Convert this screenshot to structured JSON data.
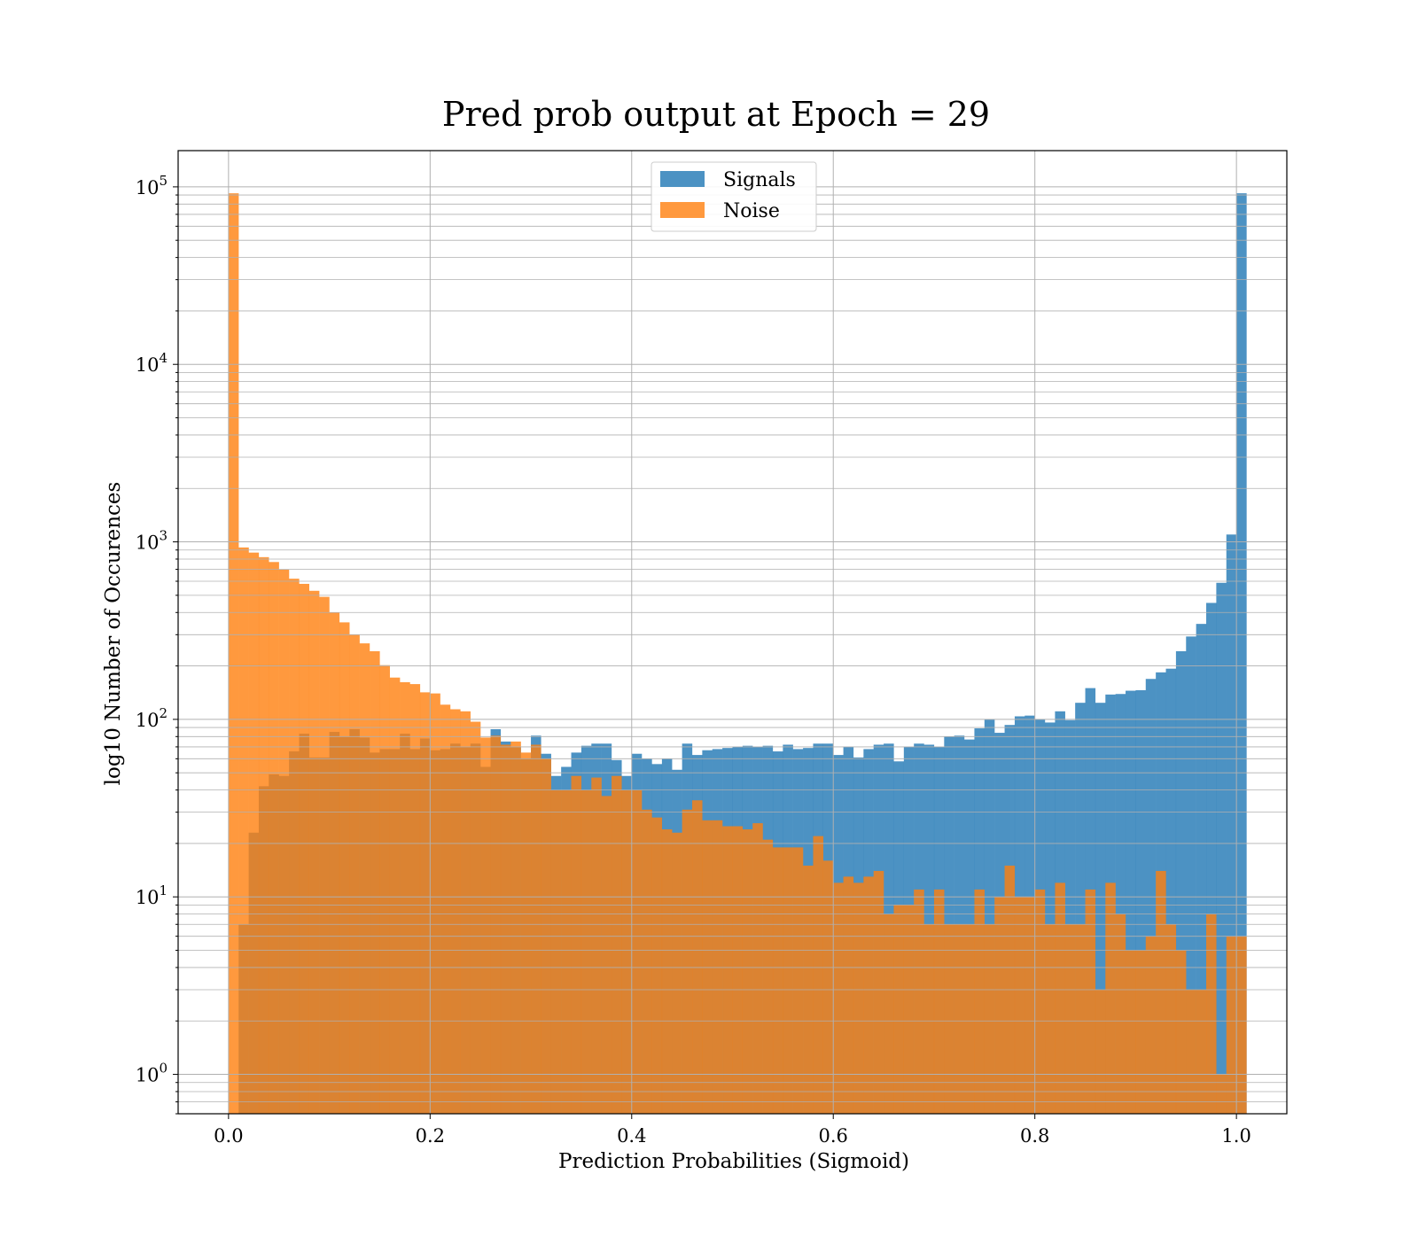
{
  "chart_data": {
    "type": "bar",
    "title": "Pred prob output at Epoch = 29",
    "xlabel": "Prediction Probabilities (Sigmoid)",
    "ylabel": "log10 Number of Occurences",
    "xlim": [
      -0.05,
      1.05
    ],
    "ylim": [
      0.6,
      160000
    ],
    "yscale": "log",
    "grid": true,
    "legend_position": "top-center",
    "bin_start": 0.0,
    "bin_width": 0.01,
    "xticks": [
      "0.0",
      "0.2",
      "0.4",
      "0.6",
      "0.8",
      "1.0"
    ],
    "yticks": [
      {
        "base": "10",
        "exp": "0"
      },
      {
        "base": "10",
        "exp": "1"
      },
      {
        "base": "10",
        "exp": "2"
      },
      {
        "base": "10",
        "exp": "3"
      },
      {
        "base": "10",
        "exp": "4"
      },
      {
        "base": "10",
        "exp": "5"
      }
    ],
    "series": [
      {
        "name": "Signals",
        "color": "#1f77b4",
        "opacity": 0.8,
        "values": [
          0,
          7,
          23,
          42,
          49,
          48,
          66,
          83,
          61,
          61,
          85,
          80,
          88,
          79,
          65,
          68,
          68,
          83,
          68,
          78,
          67,
          68,
          73,
          70,
          73,
          54,
          88,
          75,
          70,
          60,
          81,
          64,
          48,
          54,
          65,
          71,
          73,
          73,
          59,
          48,
          64,
          60,
          56,
          60,
          52,
          73,
          63,
          67,
          68,
          69,
          70,
          71,
          70,
          71,
          66,
          72,
          68,
          69,
          73,
          73,
          63,
          70,
          61,
          68,
          72,
          73,
          58,
          70,
          73,
          72,
          70,
          80,
          81,
          77,
          89,
          100,
          84,
          93,
          104,
          105,
          100,
          96,
          111,
          99,
          124,
          150,
          124,
          138,
          139,
          145,
          146,
          169,
          184,
          193,
          242,
          293,
          345,
          453,
          588,
          1100,
          92000
        ]
      },
      {
        "name": "Noise",
        "color": "#ff7f0e",
        "opacity": 0.8,
        "values": [
          92000,
          930,
          870,
          820,
          770,
          700,
          620,
          580,
          530,
          490,
          400,
          352,
          300,
          268,
          242,
          202,
          172,
          162,
          158,
          142,
          140,
          121,
          114,
          111,
          97,
          79,
          81,
          72,
          75,
          65,
          72,
          60,
          40,
          40,
          48,
          40,
          47,
          37,
          48,
          40,
          40,
          31,
          28,
          24,
          23,
          31,
          35,
          27,
          27,
          25,
          25,
          24,
          26,
          21,
          19,
          19,
          19,
          15,
          22,
          16,
          12,
          13,
          12,
          13,
          14,
          8,
          9,
          9,
          11,
          7,
          11,
          7,
          7,
          7,
          11,
          7,
          10,
          15,
          10,
          10,
          11,
          7,
          12,
          7,
          7,
          11,
          3,
          12,
          8,
          5,
          5,
          6,
          14,
          7,
          5,
          3,
          3,
          8,
          1,
          6,
          6
        ]
      }
    ]
  }
}
